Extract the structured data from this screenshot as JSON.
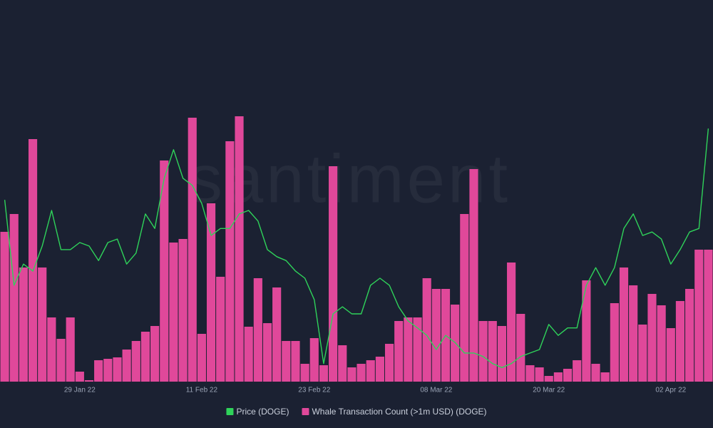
{
  "chart_data": {
    "type": "combo",
    "watermark": "santiment",
    "categories": [
      null,
      null,
      null,
      null,
      null,
      null,
      null,
      null,
      "29 Jan 22",
      null,
      null,
      null,
      null,
      null,
      null,
      null,
      null,
      null,
      null,
      null,
      null,
      "11 Feb 22",
      null,
      null,
      null,
      null,
      null,
      null,
      null,
      null,
      null,
      null,
      null,
      "23 Feb 22",
      null,
      null,
      null,
      null,
      null,
      null,
      null,
      null,
      null,
      null,
      null,
      null,
      "08 Mar 22",
      null,
      null,
      null,
      null,
      null,
      null,
      null,
      null,
      null,
      null,
      null,
      "20 Mar 22",
      null,
      null,
      null,
      null,
      null,
      null,
      null,
      null,
      null,
      null,
      null,
      null,
      "02 Apr 22",
      null,
      null,
      null,
      null
    ],
    "ylim": [
      0,
      48.5
    ],
    "y2lim": [
      0.1084,
      0.187
    ],
    "legend": "bottom",
    "series": [
      {
        "name": "Price (DOGE)",
        "type": "line",
        "axis": "y2",
        "color": "#2fd35a",
        "values": [
          0.1497,
          0.1303,
          0.1351,
          0.1335,
          0.1392,
          0.1473,
          0.1384,
          0.1384,
          0.14,
          0.1392,
          0.1359,
          0.14,
          0.1408,
          0.1351,
          0.1376,
          0.1465,
          0.1432,
          0.1546,
          0.1611,
          0.1546,
          0.153,
          0.1489,
          0.1416,
          0.1432,
          0.1432,
          0.1465,
          0.1473,
          0.1449,
          0.1384,
          0.1368,
          0.1359,
          0.1335,
          0.1319,
          0.127,
          0.1125,
          0.1238,
          0.1254,
          0.1238,
          0.1238,
          0.1303,
          0.1319,
          0.1303,
          0.1254,
          0.1222,
          0.1206,
          0.1189,
          0.1157,
          0.1189,
          0.1173,
          0.1149,
          0.1149,
          0.1141,
          0.1125,
          0.1116,
          0.1125,
          0.1141,
          0.1149,
          0.1157,
          0.1214,
          0.1189,
          0.1206,
          0.1206,
          0.1303,
          0.1343,
          0.1303,
          0.1343,
          0.1432,
          0.1465,
          0.1416,
          0.1424,
          0.1408,
          0.1351,
          0.1384,
          0.1424,
          0.1432,
          0.1659
        ]
      },
      {
        "name": "Whale Transaction Count (>1m USD) (DOGE)",
        "type": "bar",
        "color": "#e0489a",
        "values": [
          21,
          23.5,
          16,
          34,
          16,
          9,
          6,
          9,
          1.4,
          0.2,
          3,
          3.2,
          3.4,
          4.5,
          5.7,
          7,
          7.8,
          31,
          19.5,
          20,
          37,
          6.7,
          25,
          14.7,
          33.7,
          37.2,
          7.7,
          14.5,
          8.2,
          13.2,
          5.7,
          5.7,
          2.5,
          6.1,
          2.3,
          30.2,
          5.1,
          2,
          2.5,
          3,
          3.5,
          5.3,
          8.5,
          9,
          9,
          14.5,
          13,
          13,
          10.8,
          23.5,
          29.8,
          8.5,
          8.5,
          7.8,
          16.7,
          9.5,
          2.3,
          2,
          0.8,
          1.3,
          1.8,
          3,
          14.2,
          2.5,
          1.3,
          11,
          16,
          13.5,
          8,
          12.3,
          10.7,
          7.5,
          11.3,
          13,
          18.5,
          18.5
        ]
      }
    ]
  }
}
